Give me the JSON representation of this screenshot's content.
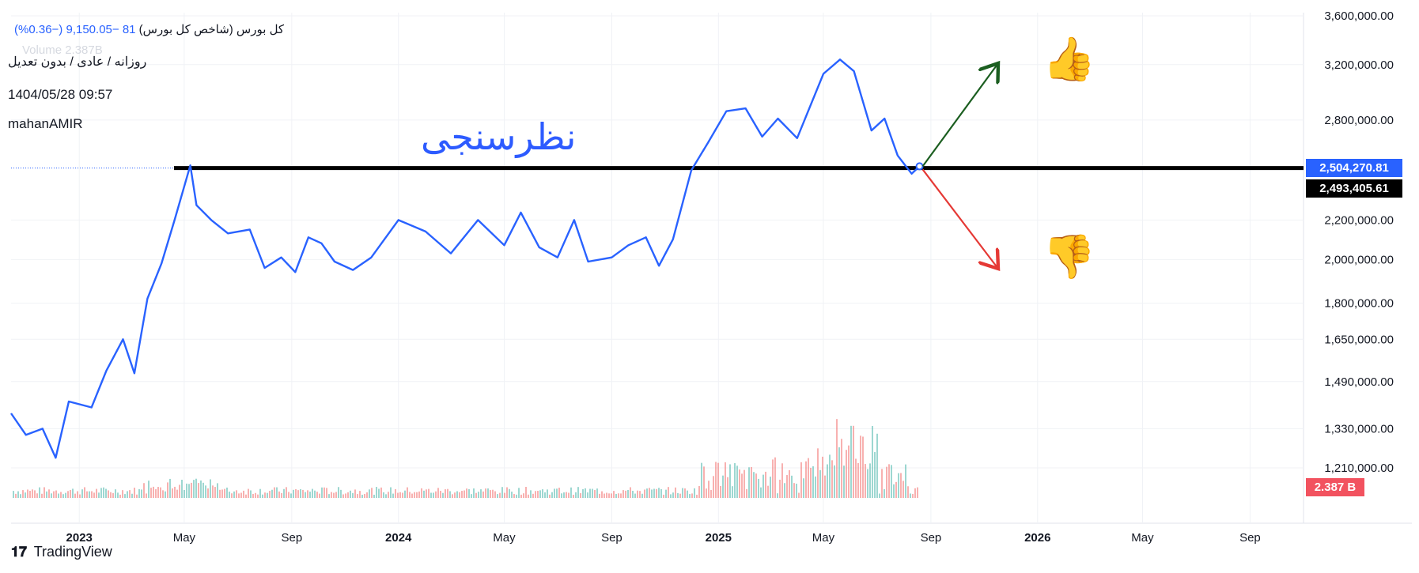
{
  "header": {
    "symbol": "کل بورس (شاخص کل بورس)",
    "last_fragment": "81",
    "change": "−9,150.05 (−0.36%)",
    "volume_ghost": "Volume  2.387B",
    "subtitle": "روزانه / عادی / بدون تعدیل",
    "datetime": "1404/05/28 09:57",
    "author": "mahanAMIR"
  },
  "annotation": "نظرسنجی",
  "price_tags": {
    "last_price": "2,504,270.81",
    "line_price": "2,493,405.61",
    "volume": "2.387 B"
  },
  "footer": {
    "brand": "TradingView",
    "logo": "tv-logo-icon"
  },
  "icons": {
    "up": "thumbs-up-icon",
    "down": "thumbs-down-icon"
  },
  "colors": {
    "line": "#2962ff",
    "support": "#000000",
    "arrow_up": "#1b5e20",
    "arrow_down": "#e53935",
    "vol_up": "#26a69a",
    "vol_down": "#ef5350"
  },
  "chart_data": {
    "type": "line",
    "y_axis_ticks": [
      3600000,
      3200000,
      2800000,
      2200000,
      2000000,
      1800000,
      1650000,
      1490000,
      1330000,
      1210000
    ],
    "y_axis_tick_labels": [
      "3,600,000.00",
      "3,200,000.00",
      "2,800,000.00",
      "2,200,000.00",
      "2,000,000.00",
      "1,800,000.00",
      "1,650,000.00",
      "1,490,000.00",
      "1,330,000.00",
      "1,210,000.00"
    ],
    "y_scale": "log",
    "x_axis_ticks": [
      "2023",
      "May",
      "Sep",
      "2024",
      "May",
      "Sep",
      "2025",
      "May",
      "Sep",
      "2026",
      "May",
      "Sep"
    ],
    "x_axis_bold": [
      "2023",
      "2024",
      "2025",
      "2026"
    ],
    "x_range": [
      "2022-10",
      "2026-11"
    ],
    "support_level": 2493405.61,
    "series": [
      {
        "values": [
          [
            "2022-10-15",
            1380000
          ],
          [
            "2022-11-01",
            1310000
          ],
          [
            "2022-11-20",
            1330000
          ],
          [
            "2022-12-05",
            1240000
          ],
          [
            "2022-12-20",
            1420000
          ],
          [
            "2023-01-15",
            1400000
          ],
          [
            "2023-02-01",
            1530000
          ],
          [
            "2023-02-20",
            1650000
          ],
          [
            "2023-03-05",
            1520000
          ],
          [
            "2023-03-20",
            1820000
          ],
          [
            "2023-04-05",
            1980000
          ],
          [
            "2023-04-20",
            2200000
          ],
          [
            "2023-05-08",
            2510000
          ],
          [
            "2023-05-15",
            2280000
          ],
          [
            "2023-06-01",
            2200000
          ],
          [
            "2023-06-20",
            2130000
          ],
          [
            "2023-07-15",
            2150000
          ],
          [
            "2023-08-01",
            1960000
          ],
          [
            "2023-08-20",
            2010000
          ],
          [
            "2023-09-05",
            1940000
          ],
          [
            "2023-09-20",
            2110000
          ],
          [
            "2023-10-05",
            2080000
          ],
          [
            "2023-10-20",
            1990000
          ],
          [
            "2023-11-10",
            1950000
          ],
          [
            "2023-12-01",
            2010000
          ],
          [
            "2024-01-01",
            2200000
          ],
          [
            "2024-02-01",
            2140000
          ],
          [
            "2024-03-01",
            2030000
          ],
          [
            "2024-04-01",
            2200000
          ],
          [
            "2024-05-01",
            2070000
          ],
          [
            "2024-05-20",
            2240000
          ],
          [
            "2024-06-10",
            2060000
          ],
          [
            "2024-07-01",
            2010000
          ],
          [
            "2024-07-20",
            2200000
          ],
          [
            "2024-08-05",
            1990000
          ],
          [
            "2024-09-01",
            2010000
          ],
          [
            "2024-09-20",
            2070000
          ],
          [
            "2024-10-10",
            2110000
          ],
          [
            "2024-10-25",
            1970000
          ],
          [
            "2024-11-10",
            2100000
          ],
          [
            "2024-12-01",
            2480000
          ],
          [
            "2024-12-20",
            2650000
          ],
          [
            "2025-01-10",
            2860000
          ],
          [
            "2025-02-01",
            2880000
          ],
          [
            "2025-02-20",
            2690000
          ],
          [
            "2025-03-10",
            2810000
          ],
          [
            "2025-04-01",
            2680000
          ],
          [
            "2025-05-01",
            3130000
          ],
          [
            "2025-05-20",
            3240000
          ],
          [
            "2025-06-05",
            3150000
          ],
          [
            "2025-06-25",
            2730000
          ],
          [
            "2025-07-10",
            2810000
          ],
          [
            "2025-07-25",
            2570000
          ],
          [
            "2025-08-10",
            2460000
          ],
          [
            "2025-08-19",
            2504270.81
          ]
        ]
      }
    ]
  }
}
